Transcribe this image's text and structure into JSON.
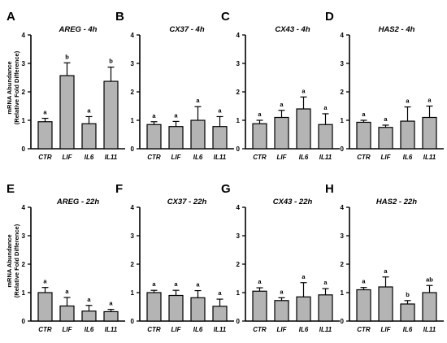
{
  "figure": {
    "ylabel_line1": "mRNA Abundance",
    "ylabel_line2": "(Relative Fold Difference)"
  },
  "colors": {
    "bar_fill": "#b4b4b4",
    "bar_stroke": "#000000",
    "axis": "#000000"
  },
  "chart_data": [
    {
      "type": "bar",
      "panel": "A",
      "title": "AREG - 4h",
      "categories": [
        "CTR",
        "LIF",
        "IL6",
        "IL11"
      ],
      "values": [
        0.95,
        2.57,
        0.88,
        2.37
      ],
      "errors": [
        0.12,
        0.45,
        0.25,
        0.5
      ],
      "significance": [
        "a",
        "b",
        "a",
        "b"
      ],
      "ylim": [
        0,
        4
      ],
      "yticks": [
        "0",
        "1",
        "2",
        "3",
        "4"
      ]
    },
    {
      "type": "bar",
      "panel": "B",
      "title": "CX37 - 4h",
      "categories": [
        "CTR",
        "LIF",
        "IL6",
        "IL11"
      ],
      "values": [
        0.85,
        0.78,
        1.0,
        0.78
      ],
      "errors": [
        0.1,
        0.18,
        0.48,
        0.35
      ],
      "significance": [
        "a",
        "a",
        "a",
        "a"
      ],
      "ylim": [
        0,
        4
      ],
      "yticks": [
        "0",
        "1",
        "2",
        "3",
        "4"
      ]
    },
    {
      "type": "bar",
      "panel": "C",
      "title": "CX43 - 4h",
      "categories": [
        "CTR",
        "LIF",
        "IL6",
        "IL11"
      ],
      "values": [
        0.88,
        1.1,
        1.4,
        0.85
      ],
      "errors": [
        0.12,
        0.25,
        0.42,
        0.38
      ],
      "significance": [
        "a",
        "a",
        "a",
        "a"
      ],
      "ylim": [
        0,
        4
      ],
      "yticks": [
        "0",
        "1",
        "2",
        "3",
        "4"
      ]
    },
    {
      "type": "bar",
      "panel": "D",
      "title": "HAS2 - 4h",
      "categories": [
        "CTR",
        "LIF",
        "IL6",
        "IL11"
      ],
      "values": [
        0.93,
        0.75,
        0.97,
        1.1
      ],
      "errors": [
        0.07,
        0.08,
        0.5,
        0.4
      ],
      "significance": [
        "a",
        "a",
        "a",
        "a"
      ],
      "ylim": [
        0,
        4
      ],
      "yticks": [
        "0",
        "1",
        "2",
        "3",
        "4"
      ]
    },
    {
      "type": "bar",
      "panel": "E",
      "title": "AREG - 22h",
      "categories": [
        "CTR",
        "LIF",
        "IL6",
        "IL11"
      ],
      "values": [
        1.0,
        0.53,
        0.35,
        0.33
      ],
      "errors": [
        0.18,
        0.3,
        0.2,
        0.08
      ],
      "significance": [
        "a",
        "a",
        "a",
        "a"
      ],
      "ylim": [
        0,
        4
      ],
      "yticks": [
        "0",
        "1",
        "2",
        "3",
        "4"
      ]
    },
    {
      "type": "bar",
      "panel": "F",
      "title": "CX37 - 22h",
      "categories": [
        "CTR",
        "LIF",
        "IL6",
        "IL11"
      ],
      "values": [
        1.0,
        0.9,
        0.82,
        0.52
      ],
      "errors": [
        0.08,
        0.18,
        0.25,
        0.25
      ],
      "significance": [
        "a",
        "a",
        "a",
        "a"
      ],
      "ylim": [
        0,
        4
      ],
      "yticks": [
        "0",
        "1",
        "2",
        "3",
        "4"
      ]
    },
    {
      "type": "bar",
      "panel": "G",
      "title": "CX43 - 22h",
      "categories": [
        "CTR",
        "LIF",
        "IL6",
        "IL11"
      ],
      "values": [
        1.05,
        0.72,
        0.85,
        0.92
      ],
      "errors": [
        0.12,
        0.1,
        0.5,
        0.22
      ],
      "significance": [
        "a",
        "a",
        "a",
        "a"
      ],
      "ylim": [
        0,
        4
      ],
      "yticks": [
        "0",
        "1",
        "2",
        "3",
        "4"
      ]
    },
    {
      "type": "bar",
      "panel": "H",
      "title": "HAS2 - 22h",
      "categories": [
        "CTR",
        "LIF",
        "IL6",
        "IL11"
      ],
      "values": [
        1.1,
        1.2,
        0.6,
        1.0
      ],
      "errors": [
        0.08,
        0.35,
        0.12,
        0.25
      ],
      "significance": [
        "a",
        "a",
        "b",
        "ab"
      ],
      "ylim": [
        0,
        4
      ],
      "yticks": [
        "0",
        "1",
        "2",
        "3",
        "4"
      ]
    }
  ]
}
